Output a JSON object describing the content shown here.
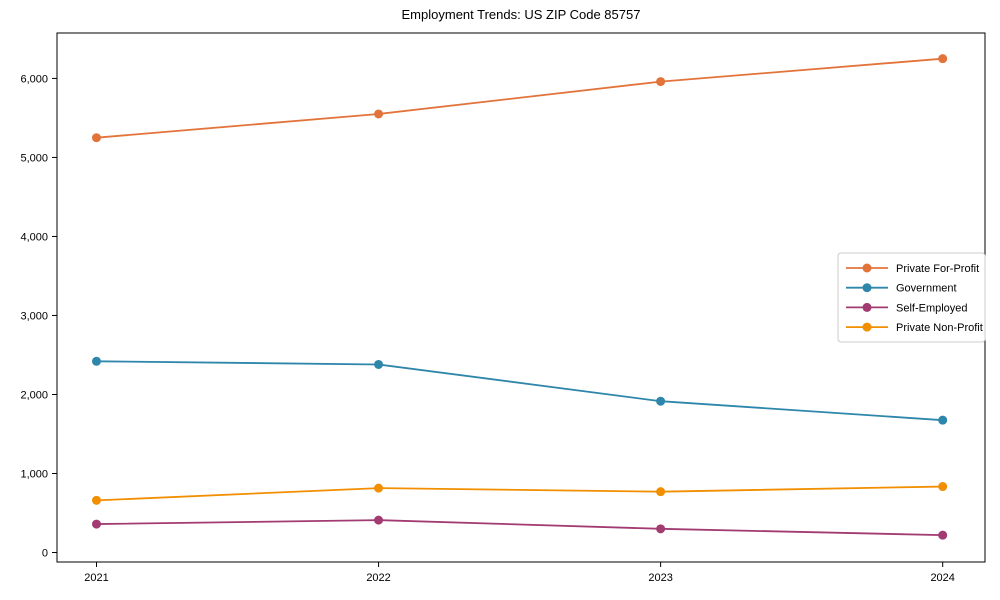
{
  "chart_data": {
    "type": "line",
    "title": "Employment Trends: US ZIP Code 85757",
    "xlabel": "",
    "ylabel": "",
    "x": [
      2021,
      2022,
      2023,
      2024
    ],
    "x_tick_labels": [
      "2021",
      "2022",
      "2023",
      "2024"
    ],
    "y_ticks": [
      0,
      1000,
      2000,
      3000,
      4000,
      5000,
      6000
    ],
    "y_tick_labels": [
      "0",
      "1,000",
      "2,000",
      "3,000",
      "4,000",
      "5,000",
      "6,000"
    ],
    "xlim": [
      2020.86,
      2024.15
    ],
    "ylim": [
      -120,
      6575
    ],
    "grid": false,
    "series": [
      {
        "name": "Private For-Profit",
        "color": "#e2743b",
        "values": [
          5250,
          5550,
          5960,
          6250
        ]
      },
      {
        "name": "Government",
        "color": "#2e86ab",
        "values": [
          2420,
          2380,
          1915,
          1675
        ]
      },
      {
        "name": "Self-Employed",
        "color": "#a23b72",
        "values": [
          360,
          410,
          300,
          220
        ]
      },
      {
        "name": "Private Non-Profit",
        "color": "#f18f01",
        "values": [
          660,
          815,
          770,
          835
        ]
      }
    ],
    "legend": {
      "position": "center-right",
      "entries": [
        "Private For-Profit",
        "Government",
        "Self-Employed",
        "Private Non-Profit"
      ],
      "border_color": "#cccccc",
      "background": "#ffffff"
    },
    "axis_color": "#000000",
    "text_color": "#000000",
    "plot_background": "#ffffff"
  }
}
